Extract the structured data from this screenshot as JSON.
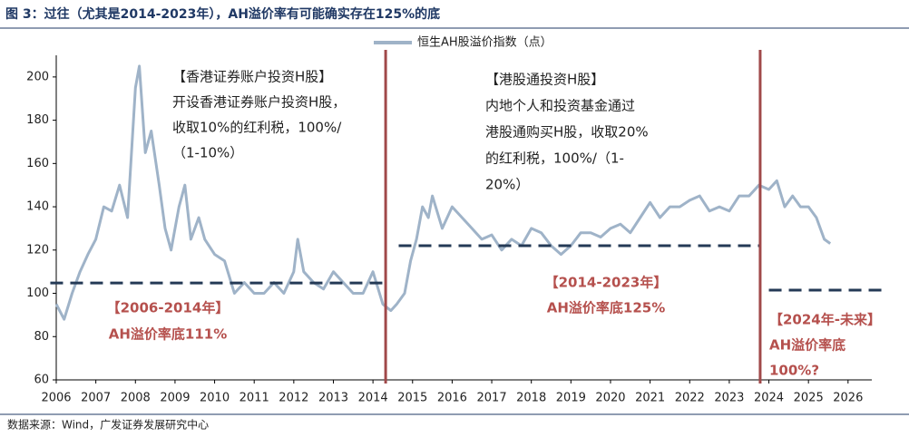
{
  "chart_data": {
    "type": "line",
    "title": "图 3：过往（尤其是2014-2023年），AH溢价率有可能确实存在125%的底",
    "source": "数据来源：Wind，广发证券发展研究中心",
    "series": [
      {
        "name": "恒生AH股溢价指数（点）",
        "color": "#9fb3c8",
        "x": [
          2006.0,
          2006.2,
          2006.4,
          2006.6,
          2006.8,
          2007.0,
          2007.2,
          2007.4,
          2007.6,
          2007.8,
          2008.0,
          2008.1,
          2008.25,
          2008.4,
          2008.6,
          2008.75,
          2008.9,
          2009.1,
          2009.25,
          2009.4,
          2009.6,
          2009.75,
          2010.0,
          2010.25,
          2010.5,
          2010.75,
          2011.0,
          2011.25,
          2011.5,
          2011.75,
          2012.0,
          2012.1,
          2012.25,
          2012.5,
          2012.75,
          2013.0,
          2013.25,
          2013.5,
          2013.75,
          2014.0,
          2014.25,
          2014.45,
          2014.6,
          2014.8,
          2014.95,
          2015.1,
          2015.25,
          2015.4,
          2015.5,
          2015.75,
          2016.0,
          2016.25,
          2016.5,
          2016.75,
          2017.0,
          2017.25,
          2017.5,
          2017.75,
          2018.0,
          2018.25,
          2018.5,
          2018.75,
          2019.0,
          2019.25,
          2019.5,
          2019.75,
          2020.0,
          2020.25,
          2020.5,
          2020.75,
          2021.0,
          2021.25,
          2021.5,
          2021.75,
          2022.0,
          2022.25,
          2022.5,
          2022.75,
          2023.0,
          2023.25,
          2023.5,
          2023.75,
          2024.0,
          2024.2,
          2024.4,
          2024.6,
          2024.8,
          2025.0,
          2025.2,
          2025.4,
          2025.55
        ],
        "values": [
          95,
          88,
          100,
          110,
          118,
          125,
          140,
          138,
          150,
          135,
          195,
          205,
          165,
          175,
          150,
          130,
          120,
          140,
          150,
          125,
          135,
          125,
          118,
          115,
          100,
          105,
          100,
          100,
          105,
          100,
          110,
          125,
          110,
          105,
          102,
          110,
          105,
          100,
          100,
          110,
          95,
          92,
          95,
          100,
          115,
          125,
          140,
          135,
          145,
          130,
          140,
          135,
          130,
          125,
          127,
          120,
          125,
          122,
          130,
          128,
          122,
          118,
          122,
          128,
          128,
          126,
          130,
          132,
          128,
          135,
          142,
          135,
          140,
          140,
          143,
          145,
          138,
          140,
          138,
          145,
          145,
          150,
          148,
          152,
          140,
          145,
          140,
          140,
          135,
          125,
          123
        ]
      }
    ],
    "xlim": [
      2006,
      2026.6
    ],
    "xticks": [
      2006,
      2007,
      2008,
      2009,
      2010,
      2011,
      2012,
      2013,
      2014,
      2015,
      2016,
      2017,
      2018,
      2019,
      2020,
      2021,
      2022,
      2023,
      2024,
      2025,
      2026
    ],
    "ylim": [
      60,
      210
    ],
    "yticks": [
      60,
      80,
      100,
      120,
      140,
      160,
      180,
      200
    ],
    "reference_lines": [
      {
        "y": 104.8,
        "x": [
          2005.85,
          2014.32
        ]
      },
      {
        "y": 122,
        "x": [
          2014.65,
          2023.78
        ]
      },
      {
        "y": 101.5,
        "x": [
          2024.0,
          2026.9
        ]
      }
    ],
    "reference_color": "#243a56",
    "vlines": [
      2014.32,
      2023.78
    ],
    "vline_color": "#a0494a",
    "annotations": [
      [
        "【香港证券账户投资H股】",
        "开设香港证券账户投资H股，",
        "收取10%的红利税，100%/",
        "（1-10%）"
      ],
      [
        "【港股通投资H股】",
        "内地个人和投资基金通过",
        "港股通购买H股，收取20%",
        "的红利税，100%/（1-",
        "20%）"
      ],
      [
        "【2006-2014年】",
        "AH溢价率底111%"
      ],
      [
        "【2014-2023年】",
        "AH溢价率底125%"
      ],
      [
        "【2024年-未来】",
        "AH溢价率底",
        "100%?"
      ]
    ],
    "annotation_color": "#b5504d"
  }
}
